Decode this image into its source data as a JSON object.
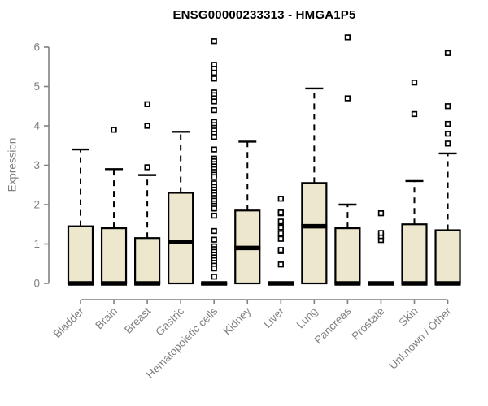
{
  "colors": {
    "background": "#FFFFFF",
    "box_fill": "#EDE8CD",
    "box_stroke": "#000000",
    "median": "#000000",
    "whisker": "#000000",
    "outlier_stroke": "#000000",
    "outlier_fill": "#FFFFFF",
    "axis": "#808080",
    "text": "#808080",
    "title": "#000000"
  },
  "chart_data": {
    "type": "boxplot",
    "title": "ENSG00000233313 - HMGA1P5",
    "ylabel": "Expression",
    "xlabel": "",
    "ylim": [
      0,
      6
    ],
    "yticks": [
      0,
      1,
      2,
      3,
      4,
      5,
      6
    ],
    "grid": false,
    "legend": "none",
    "categories": [
      "Bladder",
      "Brain",
      "Breast",
      "Gastric",
      "Hematopoietic cells",
      "Kidney",
      "Liver",
      "Lung",
      "Pancreas",
      "Prostate",
      "Skin",
      "Unknown / Other"
    ],
    "series": [
      {
        "name": "Bladder",
        "whisker_low": 0,
        "q1": 0,
        "median": 0,
        "q3": 1.45,
        "whisker_high": 3.4,
        "outliers": []
      },
      {
        "name": "Brain",
        "whisker_low": 0,
        "q1": 0,
        "median": 0,
        "q3": 1.4,
        "whisker_high": 2.9,
        "outliers": [
          3.9
        ]
      },
      {
        "name": "Breast",
        "whisker_low": 0,
        "q1": 0,
        "median": 0,
        "q3": 1.15,
        "whisker_high": 2.75,
        "outliers": [
          2.95,
          4.0,
          4.55
        ]
      },
      {
        "name": "Gastric",
        "whisker_low": 0,
        "q1": 0,
        "median": 1.05,
        "q3": 2.3,
        "whisker_high": 3.85,
        "outliers": []
      },
      {
        "name": "Hematopoietic cells",
        "whisker_low": 0,
        "q1": 0,
        "median": 0,
        "q3": 0,
        "whisker_high": 0,
        "outliers": [
          6.15,
          5.55,
          5.45,
          5.35,
          5.2,
          4.85,
          4.78,
          4.7,
          4.62,
          4.4,
          4.1,
          4.02,
          3.95,
          3.88,
          3.8,
          3.72,
          3.4,
          3.17,
          3.1,
          3.03,
          2.97,
          2.9,
          2.83,
          2.76,
          2.7,
          2.54,
          2.45,
          2.38,
          2.31,
          2.24,
          2.17,
          2.1,
          2.03,
          1.97,
          1.9,
          1.72,
          1.33,
          1.11,
          0.94,
          0.87,
          0.8,
          0.73,
          0.66,
          0.59,
          0.52,
          0.45,
          0.38,
          0.17
        ]
      },
      {
        "name": "Kidney",
        "whisker_low": 0,
        "q1": 0,
        "median": 0.9,
        "q3": 1.85,
        "whisker_high": 3.6,
        "outliers": []
      },
      {
        "name": "Liver",
        "whisker_low": 0,
        "q1": 0,
        "median": 0,
        "q3": 0,
        "whisker_high": 0,
        "outliers": [
          0.48,
          0.82,
          0.85,
          1.13,
          1.27,
          1.42,
          1.57,
          1.78,
          1.8,
          2.15
        ]
      },
      {
        "name": "Lung",
        "whisker_low": 0,
        "q1": 0,
        "median": 1.45,
        "q3": 2.55,
        "whisker_high": 4.95,
        "outliers": []
      },
      {
        "name": "Pancreas",
        "whisker_low": 0,
        "q1": 0,
        "median": 0,
        "q3": 1.4,
        "whisker_high": 2.0,
        "outliers": [
          4.7,
          6.25
        ]
      },
      {
        "name": "Prostate",
        "whisker_low": 0,
        "q1": 0,
        "median": 0,
        "q3": 0,
        "whisker_high": 0,
        "outliers": [
          1.1,
          1.2,
          1.28,
          1.78
        ]
      },
      {
        "name": "Skin",
        "whisker_low": 0,
        "q1": 0,
        "median": 0,
        "q3": 1.5,
        "whisker_high": 2.6,
        "outliers": [
          4.3,
          5.1
        ]
      },
      {
        "name": "Unknown / Other",
        "whisker_low": 0,
        "q1": 0,
        "median": 0,
        "q3": 1.35,
        "whisker_high": 3.3,
        "outliers": [
          3.55,
          3.8,
          4.05,
          4.5,
          5.85
        ]
      }
    ]
  }
}
